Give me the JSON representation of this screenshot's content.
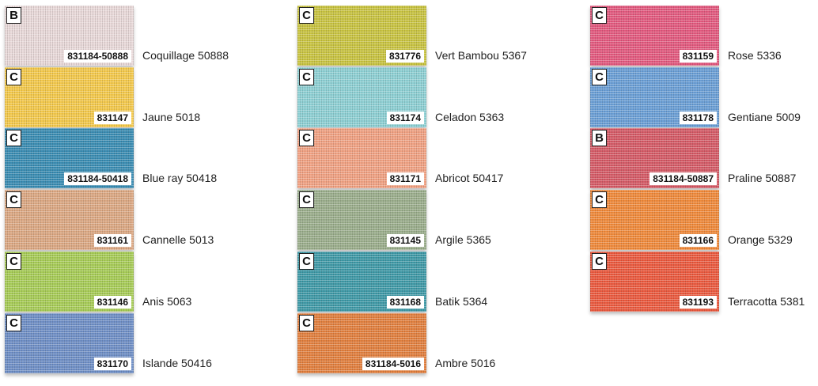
{
  "columns": [
    {
      "swatches": [
        {
          "grade": "B",
          "code": "831184-50888",
          "name": "Coquillage 50888",
          "color": "#e9d9d9"
        },
        {
          "grade": "C",
          "code": "831147",
          "name": "Jaune 5018",
          "color": "#f4c94c"
        },
        {
          "grade": "C",
          "code": "831184-50418",
          "name": "Blue ray 50418",
          "color": "#3b8db3"
        },
        {
          "grade": "C",
          "code": "831161",
          "name": "Cannelle 5013",
          "color": "#dca883"
        },
        {
          "grade": "C",
          "code": "831146",
          "name": "Anis 5063",
          "color": "#a7cc57"
        },
        {
          "grade": "C",
          "code": "831170",
          "name": "Islande 50416",
          "color": "#6f8fc6"
        }
      ]
    },
    {
      "swatches": [
        {
          "grade": "C",
          "code": "831776",
          "name": "Vert Bambou 5367",
          "color": "#c9c442"
        },
        {
          "grade": "C",
          "code": "831174",
          "name": "Celadon 5363",
          "color": "#8ed0d4"
        },
        {
          "grade": "C",
          "code": "831171",
          "name": "Abricot 50417",
          "color": "#f1a283"
        },
        {
          "grade": "C",
          "code": "831145",
          "name": "Argile 5365",
          "color": "#9bae8c"
        },
        {
          "grade": "C",
          "code": "831168",
          "name": "Batik 5364",
          "color": "#409aa7"
        },
        {
          "grade": "C",
          "code": "831184-5016",
          "name": "Ambre 5016",
          "color": "#e2803f"
        }
      ]
    },
    {
      "swatches": [
        {
          "grade": "C",
          "code": "831159",
          "name": "Rose 5336",
          "color": "#e35a7f"
        },
        {
          "grade": "C",
          "code": "831178",
          "name": "Gentiane 5009",
          "color": "#6b9fd6"
        },
        {
          "grade": "B",
          "code": "831184-50887",
          "name": "Praline 50887",
          "color": "#d55b67"
        },
        {
          "grade": "C",
          "code": "831166",
          "name": "Orange 5329",
          "color": "#f08a3b"
        },
        {
          "grade": "C",
          "code": "831193",
          "name": "Terracotta 5381",
          "color": "#eb5a3f"
        }
      ]
    }
  ]
}
